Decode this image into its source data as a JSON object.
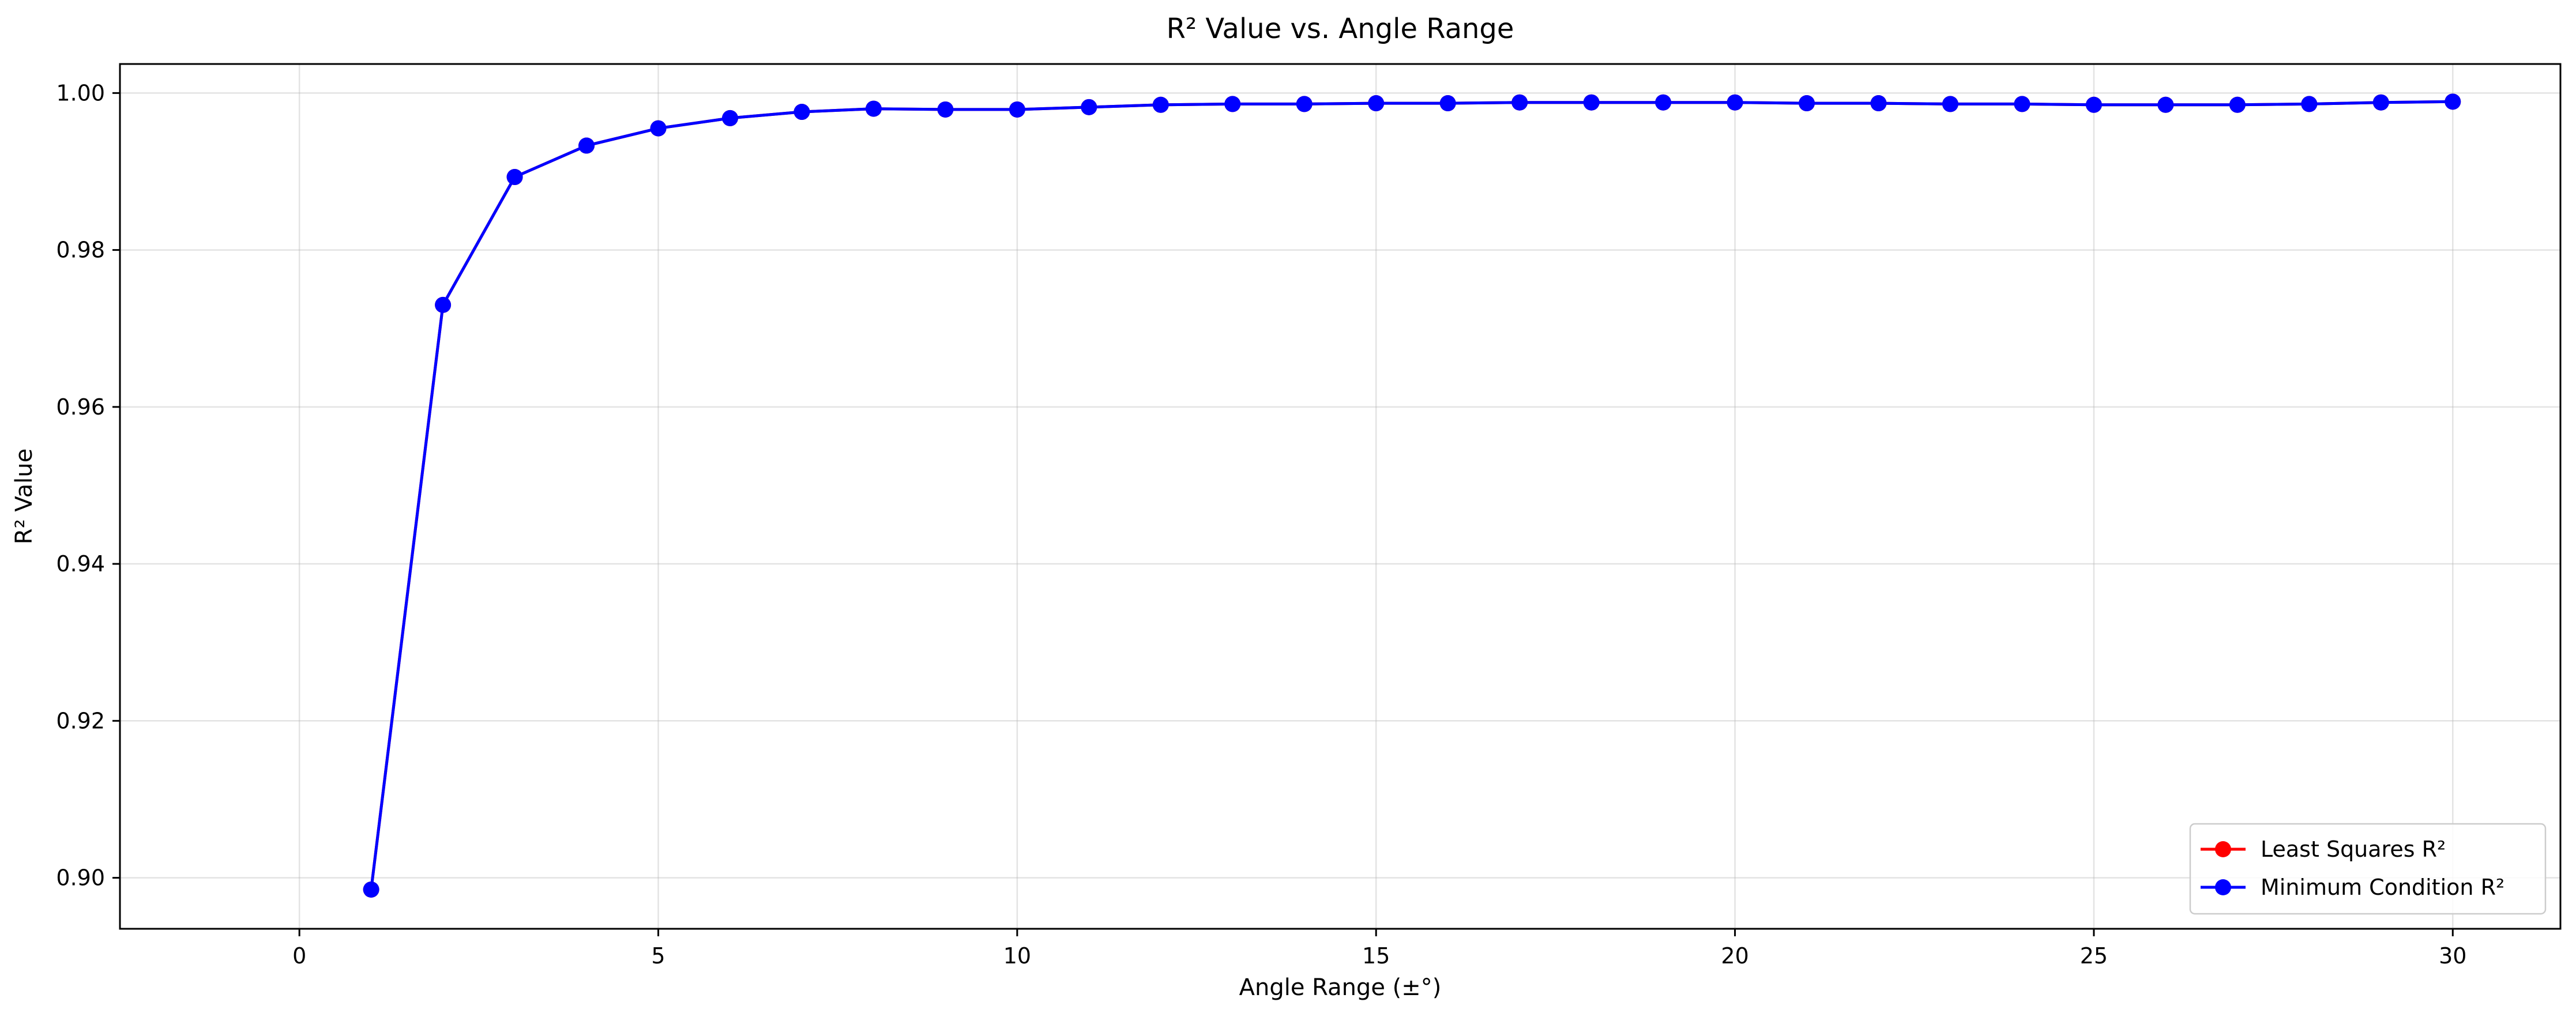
{
  "chart_data": {
    "type": "line",
    "title": "R² Value vs. Angle Range",
    "xlabel": "Angle Range (±°)",
    "ylabel": "R² Value",
    "xlim": [
      -2.5,
      31.5
    ],
    "ylim": [
      0.8935,
      1.0037
    ],
    "xticks": [
      0,
      5,
      10,
      15,
      20,
      25,
      30
    ],
    "yticks": [
      0.9,
      0.92,
      0.94,
      0.96,
      0.98,
      1.0
    ],
    "xtick_labels": [
      "0",
      "5",
      "10",
      "15",
      "20",
      "25",
      "30"
    ],
    "ytick_labels": [
      "0.90",
      "0.92",
      "0.94",
      "0.96",
      "0.98",
      "1.00"
    ],
    "grid": true,
    "legend_position": "lower right",
    "x": [
      1,
      2,
      3,
      4,
      5,
      6,
      7,
      8,
      9,
      10,
      11,
      12,
      13,
      14,
      15,
      16,
      17,
      18,
      19,
      20,
      21,
      22,
      23,
      24,
      25,
      26,
      27,
      28,
      29,
      30
    ],
    "series": [
      {
        "name": "Least Squares R²",
        "color": "#ff0000",
        "marker": "circle",
        "values": [
          0.8985,
          0.973,
          0.9893,
          0.9933,
          0.9955,
          0.9968,
          0.9976,
          0.998,
          0.9979,
          0.9979,
          0.9982,
          0.9985,
          0.9986,
          0.9986,
          0.9987,
          0.9987,
          0.9988,
          0.9988,
          0.9988,
          0.9988,
          0.9987,
          0.9987,
          0.9986,
          0.9986,
          0.9985,
          0.9985,
          0.9985,
          0.9986,
          0.9988,
          0.9989
        ]
      },
      {
        "name": "Minimum Condition R²",
        "color": "#0000ff",
        "marker": "circle",
        "values": [
          0.8985,
          0.973,
          0.9893,
          0.9933,
          0.9955,
          0.9968,
          0.9976,
          0.998,
          0.9979,
          0.9979,
          0.9982,
          0.9985,
          0.9986,
          0.9986,
          0.9987,
          0.9987,
          0.9988,
          0.9988,
          0.9988,
          0.9988,
          0.9987,
          0.9987,
          0.9986,
          0.9986,
          0.9985,
          0.9985,
          0.9985,
          0.9986,
          0.9988,
          0.9989
        ]
      }
    ]
  }
}
